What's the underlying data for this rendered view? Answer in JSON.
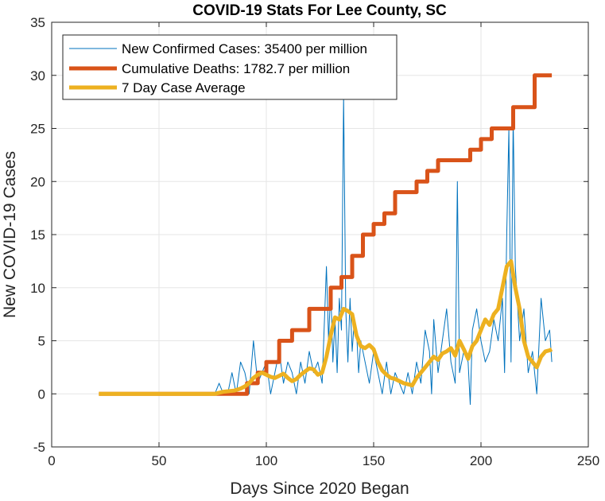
{
  "chart_data": {
    "type": "line",
    "title": "COVID-19 Stats For Lee County, SC",
    "xlabel": "Days Since 2020 Began",
    "ylabel": "New COVID-19 Cases",
    "xlim": [
      0,
      250
    ],
    "ylim": [
      -5,
      35
    ],
    "xticks": [
      0,
      50,
      100,
      150,
      200,
      250
    ],
    "yticks": [
      -5,
      0,
      5,
      10,
      15,
      20,
      25,
      30,
      35
    ],
    "grid": true,
    "legend_position": "top-left",
    "series": [
      {
        "name": "New Confirmed Cases: 35400 per million",
        "color": "#0072BD",
        "style": "thin",
        "x": [
          22,
          30,
          40,
          50,
          60,
          70,
          76,
          78,
          80,
          82,
          84,
          86,
          88,
          90,
          92,
          94,
          96,
          98,
          100,
          102,
          104,
          106,
          108,
          110,
          112,
          114,
          116,
          118,
          120,
          122,
          124,
          126,
          128,
          129,
          130,
          131,
          132,
          133,
          134,
          135,
          136,
          137,
          138,
          139,
          140,
          141,
          142,
          143,
          144,
          146,
          148,
          150,
          152,
          154,
          156,
          158,
          160,
          162,
          164,
          166,
          168,
          170,
          172,
          174,
          176,
          177,
          178,
          180,
          182,
          184,
          186,
          188,
          189,
          190,
          192,
          194,
          195,
          196,
          198,
          200,
          202,
          204,
          206,
          208,
          210,
          211,
          212,
          213,
          214,
          215,
          216,
          218,
          220,
          222,
          224,
          226,
          228,
          230,
          232,
          233
        ],
        "y": [
          0,
          0,
          0,
          0,
          0,
          0,
          0,
          1,
          0,
          0,
          2,
          0,
          3,
          2,
          0,
          5,
          1,
          2,
          3,
          0,
          2,
          4,
          1,
          3,
          2,
          0,
          3,
          1,
          4,
          2,
          3,
          1,
          12,
          5,
          10,
          3,
          7,
          2,
          9,
          6,
          28,
          8,
          3,
          9,
          4,
          7,
          6,
          2,
          5,
          3,
          1,
          4,
          2,
          0,
          3,
          0,
          2,
          1,
          0,
          2,
          0,
          3,
          1,
          6,
          4,
          0,
          7,
          2,
          5,
          8,
          3,
          1,
          20,
          2,
          4,
          3,
          -1,
          6,
          8,
          5,
          3,
          4,
          7,
          5,
          9,
          2,
          15,
          25,
          3,
          26,
          12,
          5,
          8,
          2,
          4,
          0,
          9,
          5,
          6,
          3
        ]
      },
      {
        "name": "Cumulative Deaths: 1782.7 per million",
        "color": "#D95319",
        "style": "thick",
        "x": [
          22,
          90,
          91,
          96,
          100,
          106,
          112,
          120,
          130,
          135,
          140,
          145,
          150,
          155,
          160,
          170,
          175,
          180,
          185,
          190,
          195,
          200,
          205,
          210,
          215,
          220,
          225,
          230,
          233
        ],
        "y": [
          0,
          0,
          1,
          2,
          3,
          5,
          6,
          8,
          10,
          11,
          13,
          15,
          16,
          17,
          19,
          20,
          21,
          22,
          22,
          22,
          23,
          24,
          25,
          25,
          27,
          27,
          30,
          30,
          30
        ]
      },
      {
        "name": "7 Day Case Average",
        "color": "#EDB120",
        "style": "thick",
        "x": [
          22,
          30,
          40,
          50,
          60,
          70,
          76,
          80,
          85,
          88,
          90,
          92,
          94,
          96,
          98,
          100,
          102,
          104,
          106,
          108,
          110,
          112,
          114,
          116,
          118,
          120,
          122,
          124,
          126,
          128,
          130,
          132,
          134,
          136,
          138,
          140,
          142,
          144,
          146,
          148,
          150,
          152,
          154,
          156,
          158,
          160,
          162,
          164,
          166,
          168,
          170,
          172,
          174,
          176,
          178,
          180,
          182,
          184,
          186,
          188,
          190,
          192,
          194,
          196,
          198,
          200,
          202,
          204,
          206,
          208,
          210,
          212,
          214,
          216,
          218,
          220,
          222,
          224,
          226,
          228,
          230,
          232,
          233
        ],
        "y": [
          0,
          0,
          0,
          0,
          0,
          0,
          0,
          0.2,
          0.3,
          0.5,
          0.7,
          1,
          1.5,
          1.8,
          2,
          1.8,
          1.6,
          1.5,
          1.7,
          1.9,
          1.5,
          1.2,
          1.4,
          1.8,
          2.1,
          2.4,
          2.3,
          1.8,
          2,
          3.5,
          5.5,
          7.2,
          7,
          8,
          7.8,
          7.5,
          5.5,
          4.5,
          4.3,
          4.6,
          4.2,
          3,
          2.2,
          1.8,
          1.5,
          1.4,
          1.2,
          1,
          0.9,
          0.8,
          1.5,
          2,
          2.5,
          3,
          3.5,
          3.2,
          3.8,
          4,
          4.3,
          3.6,
          5,
          4.2,
          3.3,
          4.5,
          5,
          6,
          7,
          6.5,
          7.5,
          8,
          10,
          12,
          12.5,
          10,
          8,
          5,
          3.5,
          3,
          2.5,
          3.5,
          4,
          4.1,
          4.2
        ]
      }
    ]
  }
}
